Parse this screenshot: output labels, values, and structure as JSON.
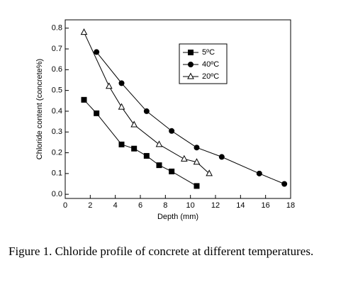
{
  "chart_data": {
    "type": "line",
    "xlabel": "Depth (mm)",
    "ylabel": "Chloride content (concrete%)",
    "xlim": [
      0,
      18
    ],
    "xticks": [
      0,
      2,
      4,
      6,
      8,
      10,
      12,
      14,
      16,
      18
    ],
    "ylim": [
      -0.02,
      0.84
    ],
    "yticks": [
      {
        "value": 0,
        "label": "0.0"
      },
      0.1,
      0.2,
      0.3,
      0.4,
      0.5,
      0.6,
      0.7,
      0.8
    ],
    "legend": "top-right",
    "series": [
      {
        "name": "5ºC",
        "color": "#000000",
        "marker": "square",
        "x": [
          1.5,
          2.5,
          4.5,
          5.5,
          6.5,
          7.5,
          8.5,
          10.5
        ],
        "values": [
          0.455,
          0.39,
          0.24,
          0.22,
          0.185,
          0.14,
          0.11,
          0.04
        ]
      },
      {
        "name": "40ºC",
        "color": "#000000",
        "marker": "circle",
        "x": [
          2.5,
          4.5,
          6.5,
          8.5,
          10.5,
          12.5,
          15.5,
          17.5
        ],
        "values": [
          0.685,
          0.535,
          0.4,
          0.305,
          0.225,
          0.18,
          0.1,
          0.05
        ]
      },
      {
        "name": "20ºC",
        "color": "#000000",
        "marker": "triangle",
        "x": [
          1.5,
          3.5,
          4.5,
          5.5,
          7.5,
          9.5,
          10.5,
          11.5
        ],
        "values": [
          0.78,
          0.52,
          0.42,
          0.335,
          0.24,
          0.17,
          0.155,
          0.1
        ]
      }
    ],
    "caption": "Figure 1. Chloride profile of concrete at different temperatures."
  }
}
